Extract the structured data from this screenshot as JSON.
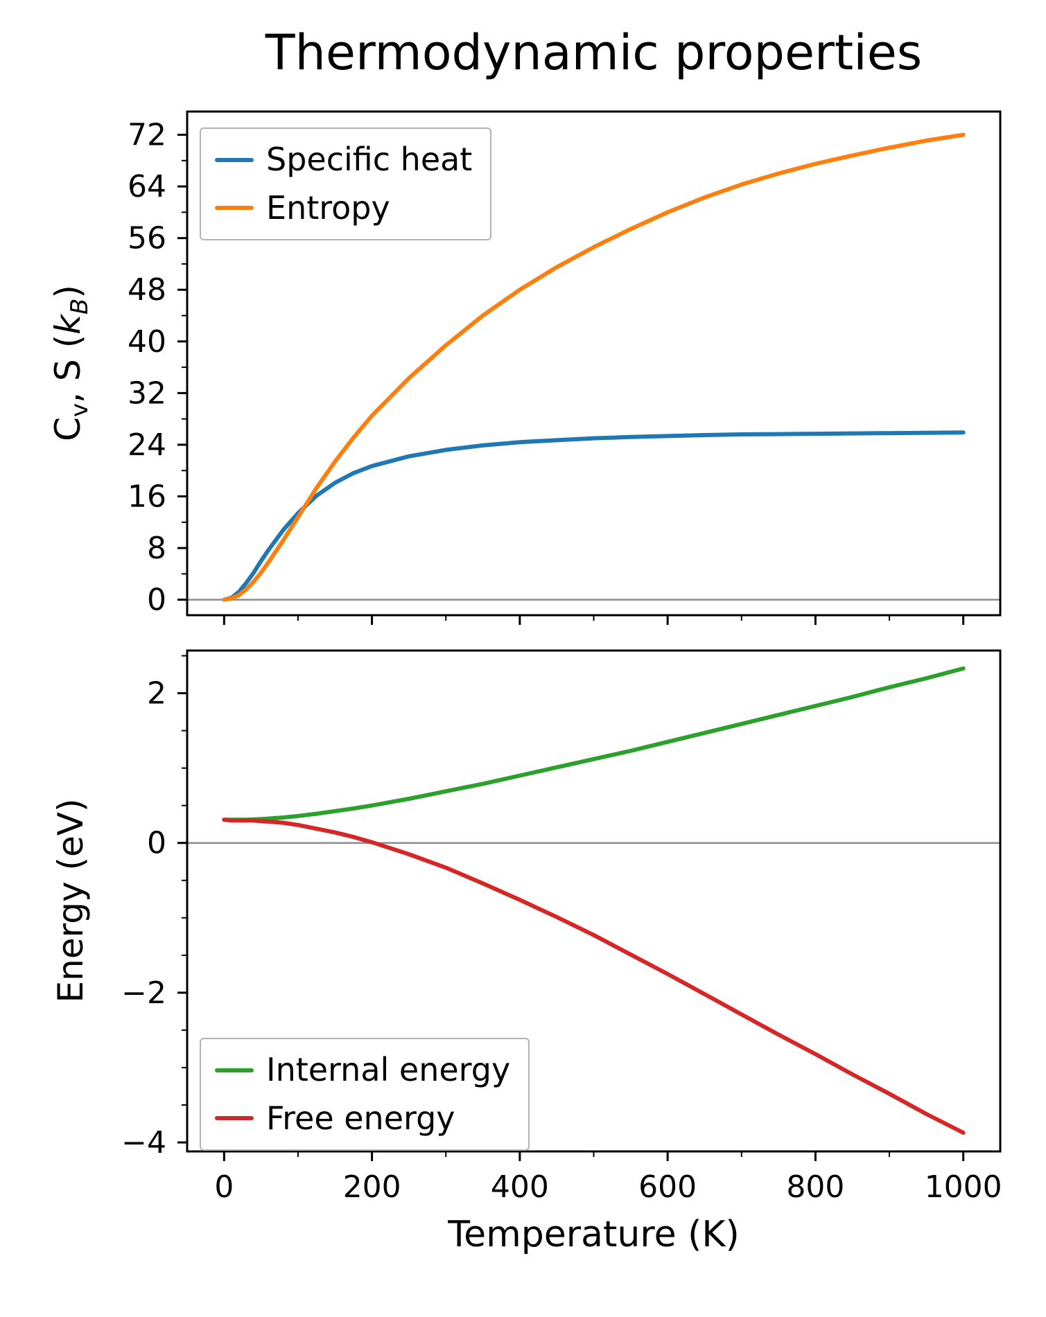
{
  "chart_data": [
    {
      "type": "line",
      "panel": "top",
      "title": "Thermodynamic properties",
      "xlabel": "",
      "ylabel": "Cv, S (kB)",
      "ylabel_parts": {
        "p1": "C",
        "s1": "v",
        "p2": ", S (",
        "k": "k",
        "s2": "B",
        "p3": ")"
      },
      "x": [
        0,
        10,
        20,
        30,
        40,
        50,
        60,
        80,
        100,
        125,
        150,
        175,
        200,
        250,
        300,
        350,
        400,
        450,
        500,
        550,
        600,
        650,
        700,
        750,
        800,
        850,
        900,
        950,
        1000
      ],
      "series": [
        {
          "name": "Specific heat",
          "color": "#1f77b4",
          "values": [
            0,
            0.3,
            1.2,
            2.6,
            4.2,
            6.0,
            7.7,
            10.8,
            13.4,
            16.1,
            18.1,
            19.6,
            20.7,
            22.2,
            23.2,
            23.9,
            24.4,
            24.7,
            25.0,
            25.2,
            25.35,
            25.5,
            25.6,
            25.65,
            25.7,
            25.75,
            25.8,
            25.85,
            25.9
          ]
        },
        {
          "name": "Entropy",
          "color": "#ff7f0e",
          "values": [
            0,
            0.2,
            0.7,
            1.6,
            2.8,
            4.2,
            5.8,
            9.2,
            12.8,
            17.3,
            21.4,
            25.1,
            28.5,
            34.3,
            39.4,
            44.0,
            48.0,
            51.5,
            54.6,
            57.4,
            60.0,
            62.3,
            64.3,
            66.0,
            67.5,
            68.8,
            70.0,
            71.1,
            72.0
          ]
        }
      ],
      "xlim": [
        -50,
        1050
      ],
      "ylim": [
        -2.4,
        75.6
      ],
      "xticks": [
        0,
        200,
        400,
        600,
        800,
        1000
      ],
      "x_minor": [
        100,
        300,
        500,
        700,
        900
      ],
      "yticks": [
        0,
        8,
        16,
        24,
        32,
        40,
        48,
        56,
        64,
        72
      ],
      "y_minor_step": 4,
      "zero_line": true,
      "zero_line_color": "#8c8c8c",
      "grid": false,
      "legend_position": "upper-left"
    },
    {
      "type": "line",
      "panel": "bottom",
      "title": "",
      "xlabel": "Temperature (K)",
      "ylabel": "Energy (eV)",
      "x": [
        0,
        10,
        20,
        30,
        40,
        50,
        60,
        80,
        100,
        125,
        150,
        175,
        200,
        250,
        300,
        350,
        400,
        450,
        500,
        550,
        600,
        650,
        700,
        750,
        800,
        850,
        900,
        950,
        1000
      ],
      "series": [
        {
          "name": "Internal energy",
          "color": "#2ca02c",
          "values": [
            0.31,
            0.31,
            0.31,
            0.31,
            0.315,
            0.32,
            0.325,
            0.34,
            0.36,
            0.39,
            0.425,
            0.46,
            0.5,
            0.59,
            0.69,
            0.79,
            0.9,
            1.01,
            1.12,
            1.23,
            1.35,
            1.47,
            1.59,
            1.71,
            1.83,
            1.95,
            2.08,
            2.2,
            2.33
          ]
        },
        {
          "name": "Free energy",
          "color": "#d62728",
          "values": [
            0.31,
            0.3,
            0.3,
            0.3,
            0.3,
            0.29,
            0.285,
            0.27,
            0.24,
            0.19,
            0.14,
            0.08,
            0.01,
            -0.15,
            -0.33,
            -0.54,
            -0.76,
            -0.99,
            -1.23,
            -1.49,
            -1.75,
            -2.02,
            -2.29,
            -2.56,
            -2.82,
            -3.09,
            -3.35,
            -3.62,
            -3.87
          ]
        }
      ],
      "xlim": [
        -50,
        1050
      ],
      "ylim": [
        -4.12,
        2.57
      ],
      "xticks": [
        0,
        200,
        400,
        600,
        800,
        1000
      ],
      "x_minor": [
        100,
        300,
        500,
        700,
        900
      ],
      "yticks": [
        -4,
        -2,
        0,
        2
      ],
      "y_minor_step": 0.5,
      "zero_line": true,
      "zero_line_color": "#8c8c8c",
      "grid": false,
      "legend_position": "lower-left"
    }
  ]
}
